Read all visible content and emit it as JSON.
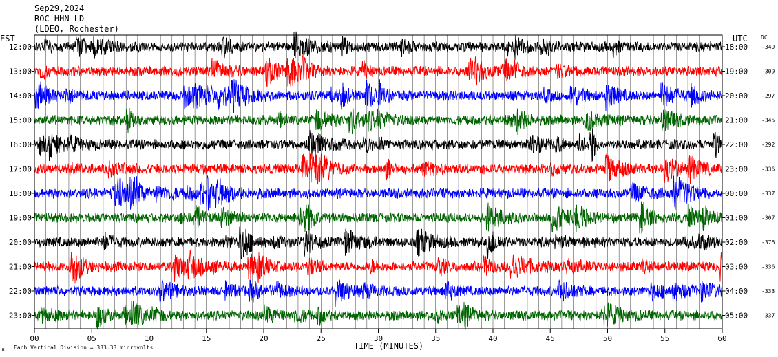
{
  "header": {
    "date": "Sep29,2024",
    "station": "ROC HHN LD --",
    "network": "(LDEO, Rochester)"
  },
  "labels": {
    "left_tz": "EST",
    "right_tz": "UTC",
    "dc": "DC",
    "footer_note": "Each Vertical Division =  333.33 microvolts",
    "footer_mark": "л"
  },
  "chart_data": {
    "type": "line",
    "title": "",
    "xlabel": "TIME (MINUTES)",
    "ylabel": "",
    "xlim": [
      0,
      60
    ],
    "x_ticks": [
      "00",
      "05",
      "10",
      "15",
      "20",
      "25",
      "30",
      "35",
      "40",
      "45",
      "50",
      "55",
      "60"
    ],
    "grid": true,
    "vertical_division_microvolts": 333.33,
    "trace_colors": [
      "#000000",
      "#ff0000",
      "#0000ff",
      "#006400"
    ],
    "rows": [
      {
        "est": "12:00",
        "utc": "18:00",
        "dc": "-349"
      },
      {
        "est": "13:00",
        "utc": "19:00",
        "dc": "-309"
      },
      {
        "est": "14:00",
        "utc": "20:00",
        "dc": "-297"
      },
      {
        "est": "15:00",
        "utc": "21:00",
        "dc": "-345"
      },
      {
        "est": "16:00",
        "utc": "22:00",
        "dc": "-292"
      },
      {
        "est": "17:00",
        "utc": "23:00",
        "dc": "-336"
      },
      {
        "est": "18:00",
        "utc": "00:00",
        "dc": "-337"
      },
      {
        "est": "19:00",
        "utc": "01:00",
        "dc": "-307"
      },
      {
        "est": "20:00",
        "utc": "02:00",
        "dc": "-376"
      },
      {
        "est": "21:00",
        "utc": "03:00",
        "dc": "-336"
      },
      {
        "est": "22:00",
        "utc": "04:00",
        "dc": "-333"
      },
      {
        "est": "23:00",
        "utc": "05:00",
        "dc": "-337"
      }
    ]
  }
}
